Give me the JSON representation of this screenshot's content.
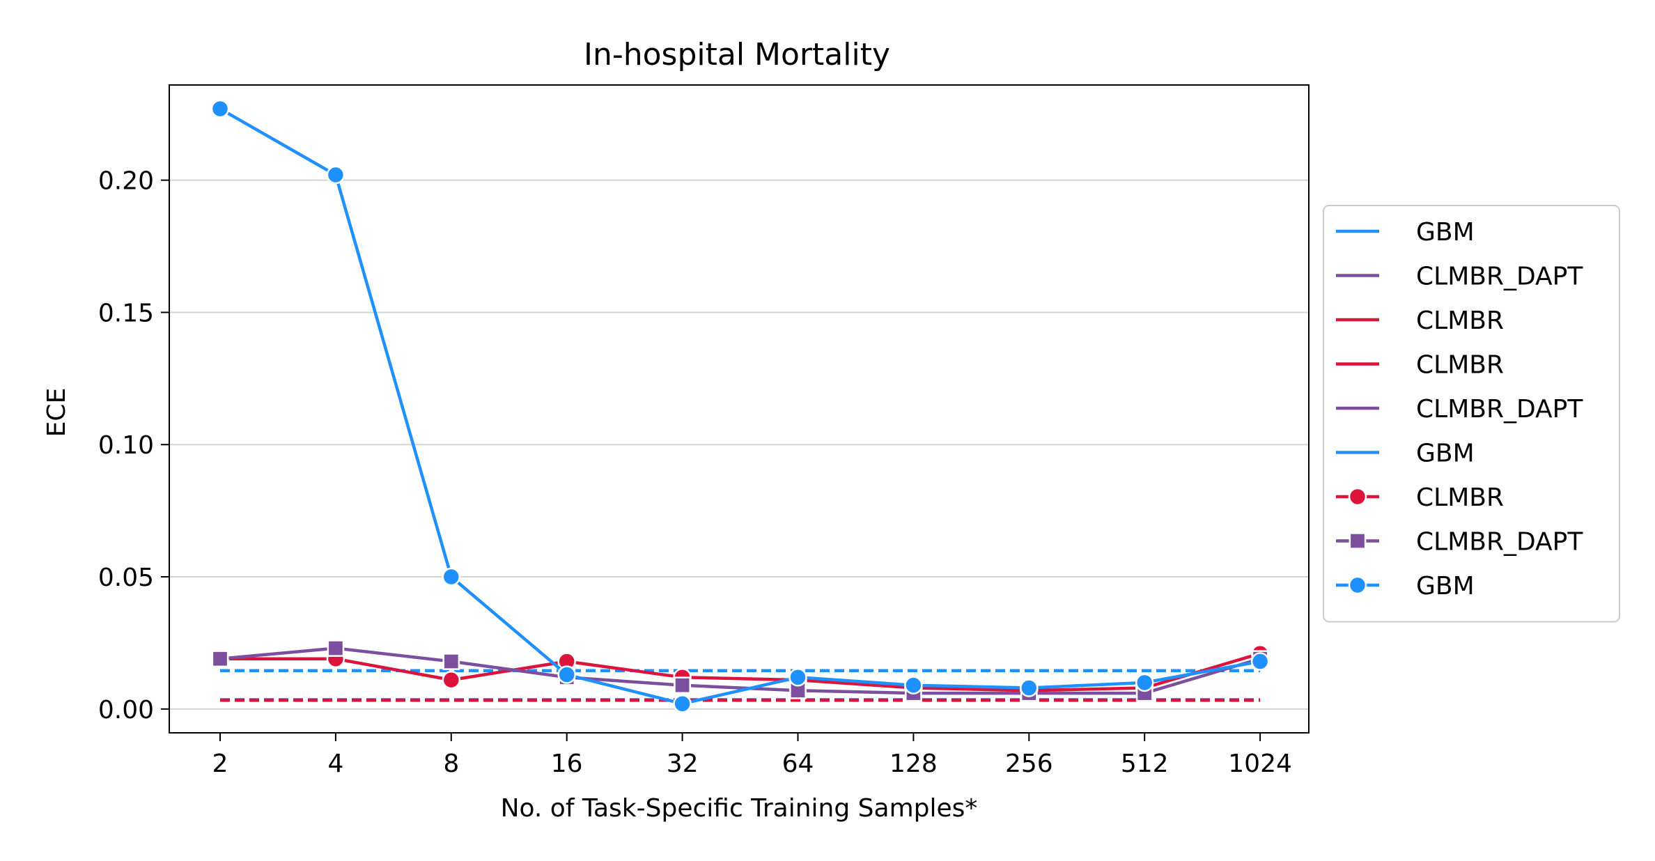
{
  "chart_data": {
    "type": "line",
    "title": "In-hospital Mortality",
    "xlabel": "No. of Task-Specific Training Samples*",
    "ylabel": "ECE",
    "categories": [
      "2",
      "4",
      "8",
      "16",
      "32",
      "64",
      "128",
      "256",
      "512",
      "1024"
    ],
    "yticks": [
      "0.00",
      "0.05",
      "0.10",
      "0.15",
      "0.20"
    ],
    "ylim": [
      -0.009,
      0.236
    ],
    "grid": "horizontal",
    "legend_position": "right",
    "colors": {
      "CLMBR": "#dc143c",
      "CLMBR_DAPT": "#7b4f9e",
      "GBM": "#1e90ff"
    },
    "reference_lines": [
      {
        "name": "GBM",
        "value": 0.0145
      },
      {
        "name": "CLMBR_DAPT",
        "value": 0.0035
      },
      {
        "name": "CLMBR",
        "value": 0.0033
      }
    ],
    "series": [
      {
        "name": "CLMBR",
        "marker": "circle",
        "values": [
          0.019,
          0.019,
          0.011,
          0.018,
          0.012,
          0.011,
          0.008,
          0.007,
          0.008,
          0.021
        ]
      },
      {
        "name": "CLMBR_DAPT",
        "marker": "square",
        "values": [
          0.019,
          0.023,
          0.018,
          0.012,
          0.009,
          0.007,
          0.006,
          0.006,
          0.006,
          0.019
        ]
      },
      {
        "name": "GBM",
        "marker": "circle",
        "values": [
          0.227,
          0.202,
          0.05,
          0.013,
          0.002,
          0.012,
          0.009,
          0.008,
          0.01,
          0.018
        ]
      }
    ],
    "legend": [
      {
        "label": "GBM",
        "series": "GBM",
        "marker": "none"
      },
      {
        "label": "CLMBR_DAPT",
        "series": "CLMBR_DAPT",
        "marker": "none"
      },
      {
        "label": "CLMBR",
        "series": "CLMBR",
        "marker": "none"
      },
      {
        "label": "CLMBR",
        "series": "CLMBR",
        "marker": "none"
      },
      {
        "label": "CLMBR_DAPT",
        "series": "CLMBR_DAPT",
        "marker": "none"
      },
      {
        "label": "GBM",
        "series": "GBM",
        "marker": "none"
      },
      {
        "label": "CLMBR",
        "series": "CLMBR",
        "marker": "circle"
      },
      {
        "label": "CLMBR_DAPT",
        "series": "CLMBR_DAPT",
        "marker": "square"
      },
      {
        "label": "GBM",
        "series": "GBM",
        "marker": "circle"
      }
    ]
  }
}
